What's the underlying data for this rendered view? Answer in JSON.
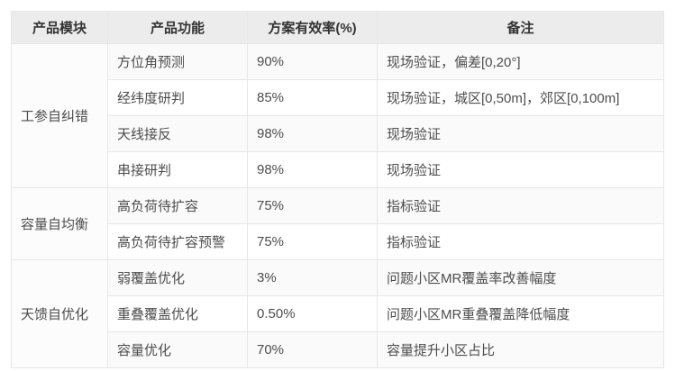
{
  "table": {
    "headers": [
      "产品模块",
      "产品功能",
      "方案有效率(%)",
      "备注"
    ],
    "modules": [
      {
        "name": "工参自纠错",
        "rows": [
          {
            "function": "方位角预测",
            "rate": "90%",
            "remark": "现场验证，偏差[0,20°]"
          },
          {
            "function": "经纬度研判",
            "rate": "85%",
            "remark": "现场验证，城区[0,50m]，郊区[0,100m]"
          },
          {
            "function": "天线接反",
            "rate": "98%",
            "remark": "现场验证"
          },
          {
            "function": "串接研判",
            "rate": "98%",
            "remark": "现场验证"
          }
        ]
      },
      {
        "name": "容量自均衡",
        "rows": [
          {
            "function": "高负荷待扩容",
            "rate": "75%",
            "remark": "指标验证"
          },
          {
            "function": "高负荷待扩容预警",
            "rate": "75%",
            "remark": "指标验证"
          }
        ]
      },
      {
        "name": "天馈自优化",
        "rows": [
          {
            "function": "弱覆盖优化",
            "rate": "3%",
            "remark": "问题小区MR覆盖率改善幅度"
          },
          {
            "function": "重叠覆盖优化",
            "rate": "0.50%",
            "remark": "问题小区MR重叠覆盖降低幅度"
          },
          {
            "function": "容量优化",
            "rate": "70%",
            "remark": "容量提升小区占比"
          }
        ]
      }
    ],
    "colors": {
      "header_bg": "#ececec",
      "stripe_bg": "#fafafa",
      "border": "#e7e7e7",
      "header_text": "#333333",
      "body_text": "#4d4d4d"
    }
  }
}
